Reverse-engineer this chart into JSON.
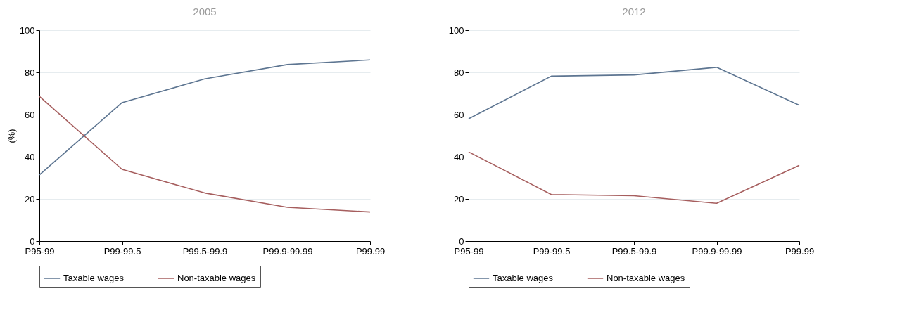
{
  "chart_data": [
    {
      "type": "line",
      "title": "2005",
      "ylabel": "(%)",
      "categories": [
        "P95-99",
        "P99-99.5",
        "P99.5-99.9",
        "P99.9-99.99",
        "P99.99"
      ],
      "ylim": [
        0,
        100
      ],
      "yticks": [
        0,
        20,
        40,
        60,
        80,
        100
      ],
      "grid": "y",
      "legend": "bottom",
      "series": [
        {
          "name": "Taxable wages",
          "color": "#5d7591",
          "values": [
            31.4,
            65.7,
            76.9,
            83.7,
            85.9
          ]
        },
        {
          "name": "Non-taxable wages",
          "color": "#a65e5e",
          "values": [
            68.6,
            34,
            22.8,
            16,
            13.8
          ]
        }
      ]
    },
    {
      "type": "line",
      "title": "2012",
      "categories": [
        "P95-99",
        "P99-99.5",
        "P99.5-99.9",
        "P99.9-99.99",
        "P99.99"
      ],
      "ylim": [
        0,
        100
      ],
      "yticks": [
        0,
        20,
        40,
        60,
        80,
        100
      ],
      "grid": "y",
      "legend": "bottom",
      "series": [
        {
          "name": "Taxable wages",
          "color": "#5d7591",
          "values": [
            58,
            78.2,
            78.8,
            82.4,
            64.4
          ]
        },
        {
          "name": "Non-taxable wages",
          "color": "#a65e5e",
          "values": [
            42.3,
            22.1,
            21.5,
            17.9,
            35.9
          ]
        }
      ]
    }
  ]
}
